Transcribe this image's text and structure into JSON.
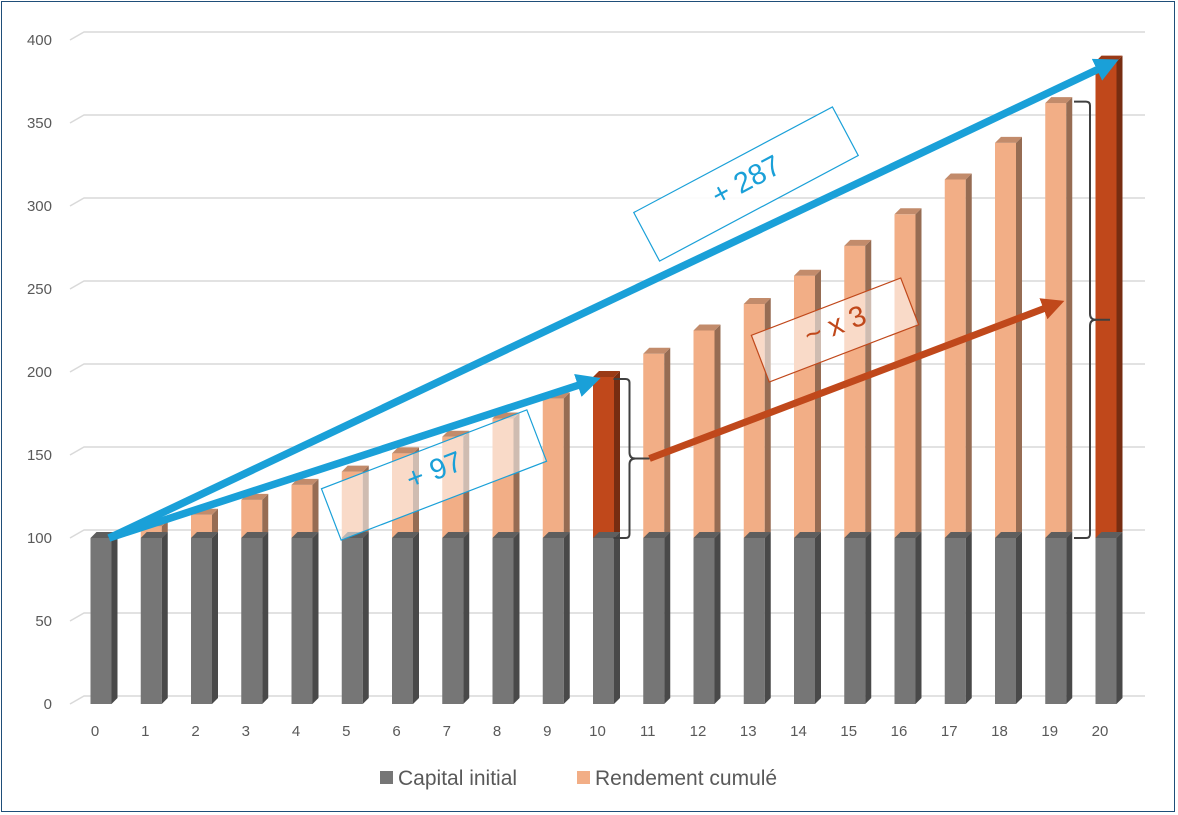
{
  "chart_data": {
    "type": "bar",
    "stacked": true,
    "style": "3d-column",
    "categories": [
      "0",
      "1",
      "2",
      "3",
      "4",
      "5",
      "6",
      "7",
      "8",
      "9",
      "10",
      "11",
      "12",
      "13",
      "14",
      "15",
      "16",
      "17",
      "18",
      "19",
      "20"
    ],
    "series": [
      {
        "name": "Capital initial",
        "color": "#767676",
        "values": [
          100,
          100,
          100,
          100,
          100,
          100,
          100,
          100,
          100,
          100,
          100,
          100,
          100,
          100,
          100,
          100,
          100,
          100,
          100,
          100,
          100
        ]
      },
      {
        "name": "Rendement cumulé",
        "color": "#f2ae86",
        "values": [
          0,
          7,
          14,
          23,
          32,
          40,
          51,
          61,
          72,
          84,
          97,
          111,
          125,
          141,
          158,
          176,
          195,
          216,
          238,
          262,
          287
        ]
      }
    ],
    "highlight_categories": [
      "10",
      "20"
    ],
    "highlight_color": "#c0481b",
    "ylim": [
      0,
      400
    ],
    "yticks": [
      0,
      50,
      100,
      150,
      200,
      250,
      300,
      350,
      400
    ],
    "grid": true,
    "legend_position": "bottom",
    "annotations": [
      {
        "text": "+ 287",
        "color": "#1aa0d8"
      },
      {
        "text": "+ 97",
        "color": "#1aa0d8"
      },
      {
        "text": "~ x 3",
        "color": "#c0481b"
      }
    ]
  }
}
